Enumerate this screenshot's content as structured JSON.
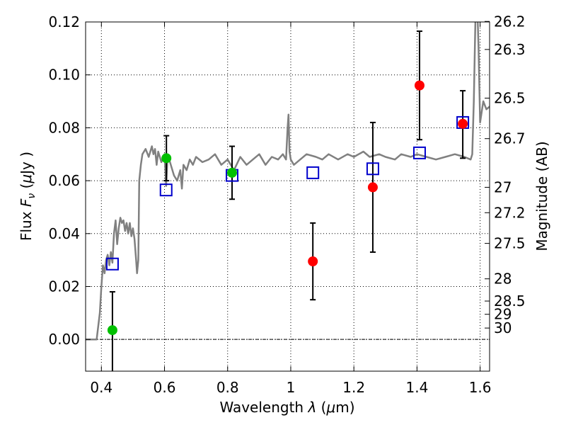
{
  "chart_data": {
    "type": "scatter",
    "title": "",
    "xlabel": {
      "prefix": "Wavelength  ",
      "sym": "λ",
      "open": " (",
      "mu": "μ",
      "unit": "m)"
    },
    "ylabel": {
      "prefix": "Flux  ",
      "sym": "F",
      "sub": "ν",
      "open": "  (",
      "mu": "μ",
      "unit": "Jy )"
    },
    "y2label": "Magnitude (AB)",
    "xlim": [
      0.35,
      1.63
    ],
    "ylim": [
      -0.012,
      0.12
    ],
    "grid": true,
    "x_ticks": [
      0.4,
      0.6,
      0.8,
      1.0,
      1.2,
      1.4,
      1.6
    ],
    "x_tick_labels": [
      "0.4",
      "0.6",
      "0.8",
      "1",
      "1.2",
      "1.4",
      "1.6"
    ],
    "y_ticks": [
      0.0,
      0.02,
      0.04,
      0.06,
      0.08,
      0.1,
      0.12
    ],
    "y_tick_labels": [
      "0.00",
      "0.02",
      "0.04",
      "0.06",
      "0.08",
      "0.10",
      "0.12"
    ],
    "mag_ticks": [
      {
        "label": "26.2",
        "flux": 0.1202
      },
      {
        "label": "26.3",
        "flux": 0.1096
      },
      {
        "label": "26.5",
        "flux": 0.0912
      },
      {
        "label": "26.7",
        "flux": 0.0759
      },
      {
        "label": "27",
        "flux": 0.0575
      },
      {
        "label": "27.2",
        "flux": 0.0479
      },
      {
        "label": "27.5",
        "flux": 0.0363
      },
      {
        "label": "28",
        "flux": 0.0229
      },
      {
        "label": "28.5",
        "flux": 0.0145
      },
      {
        "label": "29",
        "flux": 0.0095
      },
      {
        "label": "30",
        "flux": 0.0043
      }
    ],
    "colors": {
      "sed": "#808080",
      "green": "#00c000",
      "red": "#ff0000",
      "model": "#0000cc",
      "errorbar": "#000000",
      "grid": "#000000"
    },
    "sed_template": {
      "x": [
        0.35,
        0.385,
        0.395,
        0.4,
        0.405,
        0.41,
        0.415,
        0.42,
        0.425,
        0.43,
        0.435,
        0.44,
        0.445,
        0.45,
        0.455,
        0.46,
        0.465,
        0.47,
        0.475,
        0.48,
        0.485,
        0.49,
        0.495,
        0.5,
        0.505,
        0.51,
        0.513,
        0.517,
        0.52,
        0.525,
        0.53,
        0.54,
        0.55,
        0.56,
        0.565,
        0.57,
        0.575,
        0.58,
        0.59,
        0.6,
        0.605,
        0.61,
        0.62,
        0.63,
        0.64,
        0.65,
        0.655,
        0.66,
        0.67,
        0.68,
        0.69,
        0.7,
        0.72,
        0.74,
        0.76,
        0.78,
        0.8,
        0.82,
        0.84,
        0.86,
        0.88,
        0.9,
        0.92,
        0.94,
        0.96,
        0.975,
        0.985,
        0.99,
        0.993,
        0.996,
        1.0,
        1.01,
        1.03,
        1.05,
        1.08,
        1.1,
        1.12,
        1.15,
        1.18,
        1.2,
        1.23,
        1.25,
        1.28,
        1.3,
        1.33,
        1.35,
        1.38,
        1.4,
        1.43,
        1.46,
        1.49,
        1.52,
        1.55,
        1.57,
        1.575,
        1.58,
        1.585,
        1.59,
        1.595,
        1.6,
        1.61,
        1.62,
        1.63
      ],
      "y": [
        0.0,
        0.0,
        0.01,
        0.02,
        0.028,
        0.025,
        0.03,
        0.032,
        0.028,
        0.033,
        0.029,
        0.04,
        0.045,
        0.036,
        0.042,
        0.046,
        0.044,
        0.045,
        0.041,
        0.044,
        0.04,
        0.044,
        0.039,
        0.042,
        0.038,
        0.03,
        0.025,
        0.03,
        0.06,
        0.066,
        0.07,
        0.072,
        0.069,
        0.073,
        0.07,
        0.072,
        0.066,
        0.071,
        0.067,
        0.07,
        0.058,
        0.07,
        0.066,
        0.062,
        0.06,
        0.064,
        0.057,
        0.066,
        0.064,
        0.068,
        0.066,
        0.069,
        0.067,
        0.068,
        0.07,
        0.066,
        0.068,
        0.064,
        0.069,
        0.066,
        0.068,
        0.07,
        0.066,
        0.069,
        0.068,
        0.07,
        0.068,
        0.08,
        0.085,
        0.071,
        0.068,
        0.066,
        0.068,
        0.07,
        0.069,
        0.068,
        0.07,
        0.068,
        0.07,
        0.069,
        0.071,
        0.069,
        0.07,
        0.069,
        0.068,
        0.07,
        0.069,
        0.07,
        0.069,
        0.068,
        0.069,
        0.07,
        0.069,
        0.068,
        0.07,
        0.09,
        0.12,
        0.13,
        0.11,
        0.082,
        0.09,
        0.087,
        0.088
      ]
    },
    "observed_green": [
      {
        "x": 0.435,
        "y": 0.0035,
        "err_lo": -0.013,
        "err_hi": 0.018
      },
      {
        "x": 0.606,
        "y": 0.0685,
        "err_lo": 0.06,
        "err_hi": 0.077
      },
      {
        "x": 0.814,
        "y": 0.063,
        "err_lo": 0.053,
        "err_hi": 0.073
      }
    ],
    "observed_red": [
      {
        "x": 1.07,
        "y": 0.0295,
        "err_lo": 0.015,
        "err_hi": 0.044
      },
      {
        "x": 1.26,
        "y": 0.0575,
        "err_lo": 0.033,
        "err_hi": 0.082
      },
      {
        "x": 1.408,
        "y": 0.096,
        "err_lo": 0.0755,
        "err_hi": 0.1165
      },
      {
        "x": 1.545,
        "y": 0.0815,
        "err_lo": 0.0685,
        "err_hi": 0.094
      }
    ],
    "model_squares": [
      {
        "x": 0.435,
        "y": 0.0285
      },
      {
        "x": 0.605,
        "y": 0.0565
      },
      {
        "x": 0.814,
        "y": 0.062
      },
      {
        "x": 1.07,
        "y": 0.063
      },
      {
        "x": 1.26,
        "y": 0.0645
      },
      {
        "x": 1.408,
        "y": 0.0705
      },
      {
        "x": 1.545,
        "y": 0.082
      }
    ]
  }
}
